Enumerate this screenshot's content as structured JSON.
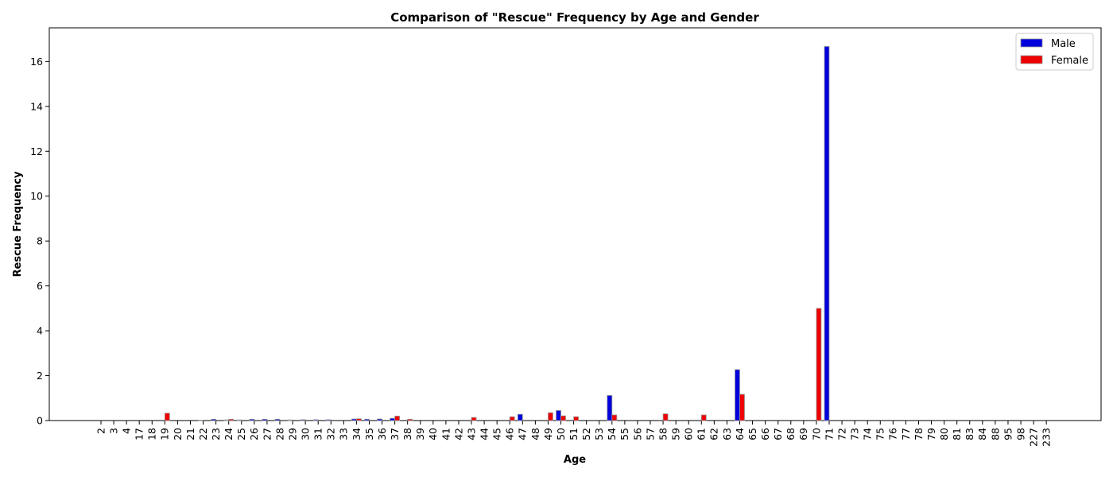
{
  "chart_data": {
    "type": "bar",
    "title": "Comparison of \"Rescue\" Frequency by Age and Gender",
    "xlabel": "Age",
    "ylabel": "Rescue Frequency",
    "ylim": [
      0,
      17.5
    ],
    "yticks": [
      0,
      2,
      4,
      6,
      8,
      10,
      12,
      14,
      16
    ],
    "grid": false,
    "legend_position": "top-right",
    "categories": [
      "2",
      "3",
      "4",
      "17",
      "18",
      "19",
      "20",
      "21",
      "22",
      "23",
      "24",
      "25",
      "26",
      "27",
      "28",
      "29",
      "30",
      "31",
      "32",
      "33",
      "34",
      "35",
      "36",
      "37",
      "38",
      "39",
      "40",
      "41",
      "42",
      "43",
      "44",
      "45",
      "46",
      "47",
      "48",
      "49",
      "50",
      "51",
      "52",
      "53",
      "54",
      "55",
      "56",
      "57",
      "58",
      "59",
      "60",
      "61",
      "62",
      "63",
      "64",
      "65",
      "66",
      "67",
      "68",
      "69",
      "70",
      "71",
      "72",
      "73",
      "74",
      "75",
      "76",
      "77",
      "78",
      "79",
      "80",
      "81",
      "83",
      "84",
      "88",
      "95",
      "98",
      "227",
      "233"
    ],
    "series": [
      {
        "name": "Male",
        "color": "#0000dd",
        "values": [
          0,
          0,
          0,
          0,
          0,
          0,
          0,
          0,
          0.02,
          0.06,
          0.03,
          0.03,
          0.06,
          0.06,
          0.06,
          0.03,
          0.04,
          0.04,
          0.04,
          0,
          0.07,
          0.06,
          0.07,
          0.1,
          0,
          0,
          0,
          0,
          0,
          0,
          0,
          0,
          0,
          0.28,
          0,
          0,
          0.45,
          0,
          0,
          0,
          1.12,
          0,
          0,
          0,
          0,
          0,
          0,
          0,
          0,
          0,
          2.27,
          0,
          0,
          0,
          0,
          0,
          0,
          16.67,
          0,
          0,
          0,
          0,
          0,
          0,
          0,
          0,
          0,
          0,
          0,
          0,
          0,
          0,
          0,
          0,
          0
        ]
      },
      {
        "name": "Female",
        "color": "#ee0000",
        "values": [
          0,
          0,
          0,
          0,
          0,
          0.33,
          0,
          0,
          0,
          0,
          0.06,
          0,
          0,
          0,
          0,
          0,
          0,
          0,
          0,
          0,
          0.08,
          0,
          0,
          0.2,
          0.06,
          0,
          0,
          0,
          0,
          0.14,
          0,
          0,
          0.17,
          0,
          0,
          0.35,
          0.21,
          0.17,
          0,
          0,
          0.25,
          0,
          0,
          0,
          0.3,
          0,
          0,
          0.25,
          0,
          0,
          1.17,
          0,
          0,
          0,
          0,
          0,
          5.0,
          0,
          0,
          0,
          0,
          0,
          0,
          0,
          0,
          0,
          0,
          0,
          0,
          0,
          0,
          0,
          0,
          0,
          0
        ]
      }
    ]
  }
}
